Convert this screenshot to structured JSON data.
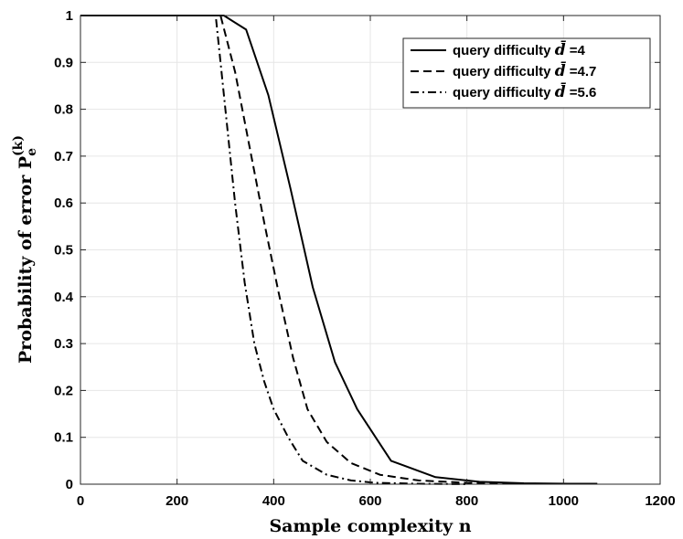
{
  "chart_data": {
    "type": "line",
    "xlabel": "Sample complexity n",
    "ylabel_main": "Probability of error P",
    "ylabel_sub": "e",
    "ylabel_sup": "(k)",
    "xlim": [
      0,
      1200
    ],
    "ylim": [
      0,
      1
    ],
    "xticks": [
      "0",
      "200",
      "400",
      "600",
      "800",
      "1000",
      "1200"
    ],
    "yticks": [
      "0",
      "0.1",
      "0.2",
      "0.3",
      "0.4",
      "0.5",
      "0.6",
      "0.7",
      "0.8",
      "0.9",
      "1"
    ],
    "grid": true,
    "legend_position": "top-right",
    "series": [
      {
        "label_prefix": "query difficulty",
        "label_symbol": "d̄",
        "label_value": "=4",
        "dash": "solid",
        "x": [
          0,
          100,
          200,
          250,
          297,
          343,
          389,
          435,
          481,
          527,
          573,
          643,
          735,
          826,
          918,
          1010,
          1070
        ],
        "y": [
          1,
          1,
          1,
          1,
          1,
          0.97,
          0.83,
          0.63,
          0.42,
          0.26,
          0.16,
          0.05,
          0.015,
          0.005,
          0.002,
          0.001,
          0.001
        ]
      },
      {
        "label_prefix": "query difficulty",
        "label_symbol": "d̄",
        "label_value": "=4.7",
        "dash": "dashed",
        "x": [
          0,
          100,
          200,
          250,
          290,
          320,
          350,
          380,
          410,
          440,
          470,
          510,
          560,
          620,
          700,
          800,
          920
        ],
        "y": [
          1,
          1,
          1,
          1,
          1,
          0.88,
          0.72,
          0.56,
          0.41,
          0.27,
          0.16,
          0.09,
          0.045,
          0.02,
          0.008,
          0.003,
          0.001
        ]
      },
      {
        "label_prefix": "query difficulty",
        "label_symbol": "d̄",
        "label_value": "=5.6",
        "dash": "dashdot",
        "x": [
          0,
          100,
          200,
          250,
          280,
          300,
          320,
          340,
          360,
          380,
          400,
          430,
          460,
          510,
          560,
          610,
          700,
          800
        ],
        "y": [
          1,
          1,
          1,
          1,
          1,
          0.8,
          0.6,
          0.43,
          0.3,
          0.22,
          0.16,
          0.1,
          0.05,
          0.02,
          0.008,
          0.003,
          0.001,
          0
        ]
      }
    ]
  }
}
